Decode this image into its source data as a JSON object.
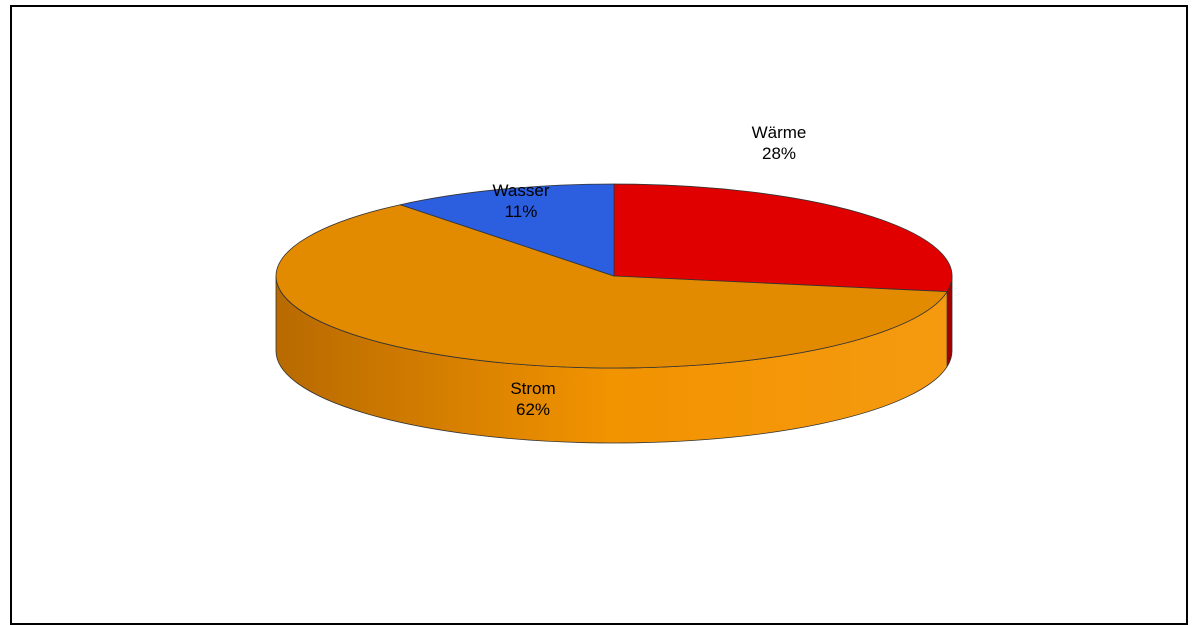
{
  "chart_data": {
    "type": "pie",
    "title": "",
    "style": "3d",
    "slices": [
      {
        "label": "Wärme",
        "percent_label": "28%",
        "value": 28,
        "color": "#e00000",
        "side_color": "#a00000"
      },
      {
        "label": "Strom",
        "percent_label": "62%",
        "value": 62,
        "color": "#e28a00",
        "side_color": "#c87400"
      },
      {
        "label": "Wasser",
        "percent_label": "11%",
        "value": 11,
        "color": "#2b5fe0",
        "side_color": "#1d44a8"
      }
    ],
    "legend": "none"
  }
}
